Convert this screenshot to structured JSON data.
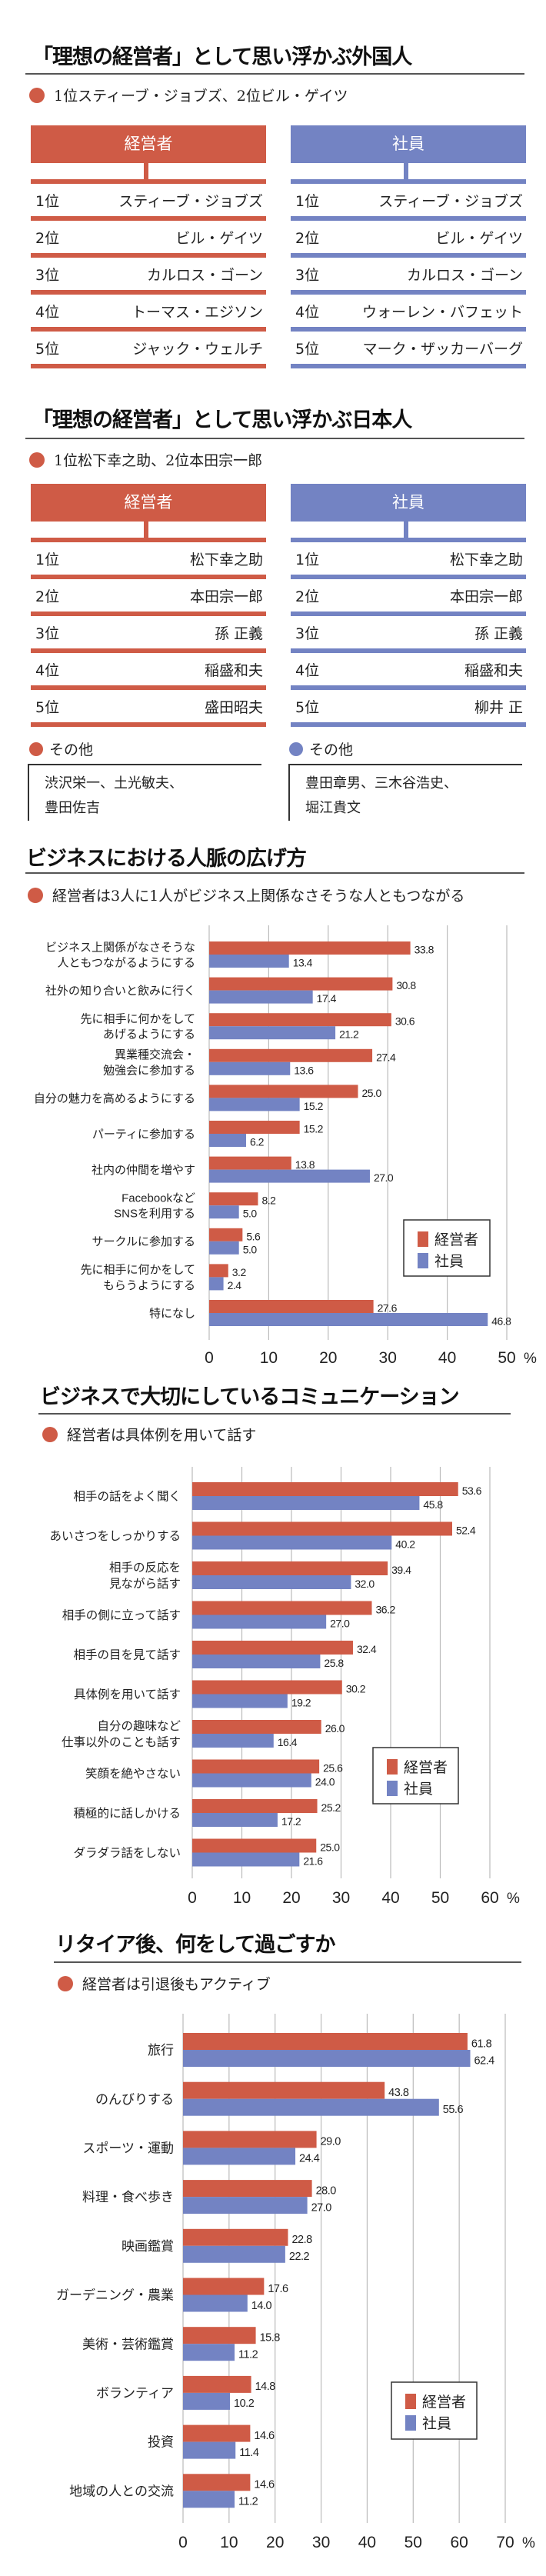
{
  "colors": {
    "executive": "#cf5b46",
    "employee": "#7383c3"
  },
  "section_foreign": {
    "title": "「理想の経営者」として思い浮かぶ外国人",
    "subtitle": "1位スティーブ・ジョブズ、2位ビル・ゲイツ",
    "executive": {
      "header": "経営者",
      "rows": [
        {
          "rank": "1位",
          "name": "スティーブ・ジョブズ"
        },
        {
          "rank": "2位",
          "name": "ビル・ゲイツ"
        },
        {
          "rank": "3位",
          "name": "カルロス・ゴーン"
        },
        {
          "rank": "4位",
          "name": "トーマス・エジソン"
        },
        {
          "rank": "5位",
          "name": "ジャック・ウェルチ"
        }
      ]
    },
    "employee": {
      "header": "社員",
      "rows": [
        {
          "rank": "1位",
          "name": "スティーブ・ジョブズ"
        },
        {
          "rank": "2位",
          "name": "ビル・ゲイツ"
        },
        {
          "rank": "3位",
          "name": "カルロス・ゴーン"
        },
        {
          "rank": "4位",
          "name": "ウォーレン・バフェット"
        },
        {
          "rank": "5位",
          "name": "マーク・ザッカーバーグ"
        }
      ]
    }
  },
  "section_japanese": {
    "title": "「理想の経営者」として思い浮かぶ日本人",
    "subtitle": "1位松下幸之助、2位本田宗一郎",
    "executive": {
      "header": "経営者",
      "rows": [
        {
          "rank": "1位",
          "name": "松下幸之助"
        },
        {
          "rank": "2位",
          "name": "本田宗一郎"
        },
        {
          "rank": "3位",
          "name": "孫 正義"
        },
        {
          "rank": "4位",
          "name": "稲盛和夫"
        },
        {
          "rank": "5位",
          "name": "盛田昭夫"
        }
      ],
      "other_label": "その他",
      "other_line1": "渋沢栄一、土光敏夫、",
      "other_line2": "豊田佐吉"
    },
    "employee": {
      "header": "社員",
      "rows": [
        {
          "rank": "1位",
          "name": "松下幸之助"
        },
        {
          "rank": "2位",
          "name": "本田宗一郎"
        },
        {
          "rank": "3位",
          "name": "孫 正義"
        },
        {
          "rank": "4位",
          "name": "稲盛和夫"
        },
        {
          "rank": "5位",
          "name": "柳井 正"
        }
      ],
      "other_label": "その他",
      "other_line1": "豊田章男、三木谷浩史、",
      "other_line2": "堀江貴文"
    }
  },
  "chart_sections": [
    {
      "title": "ビジネスにおける人脈の広げ方",
      "subtitle": "経営者は3人に1人がビジネス上関係なさそうな人ともつながる"
    },
    {
      "title": "ビジネスで大切にしているコミュニケーション",
      "subtitle": "経営者は具体例を用いて話す"
    },
    {
      "title": "リタイア後、何をして過ごすか",
      "subtitle": "経営者は引退後もアクティブ"
    }
  ],
  "chart_data": [
    {
      "type": "bar",
      "orientation": "horizontal",
      "xlim": [
        0,
        50
      ],
      "xticks": [
        0,
        10,
        20,
        30,
        40,
        50
      ],
      "unit": "%",
      "grid": true,
      "legend": "right",
      "categories": [
        "ビジネス上関係がなさそうな\n人ともつながるようにする",
        "社外の知り合いと飲みに行く",
        "先に相手に何かをして\nあげるようにする",
        "異業種交流会・\n勉強会に参加する",
        "自分の魅力を高めるようにする",
        "パーティに参加する",
        "社内の仲間を増やす",
        "Facebookなど\nSNSを利用する",
        "サークルに参加する",
        "先に相手に何かをして\nもらうようにする",
        "特になし"
      ],
      "series": [
        {
          "name": "経営者",
          "values": [
            33.8,
            30.8,
            30.6,
            27.4,
            25.0,
            15.2,
            13.8,
            8.2,
            5.6,
            3.2,
            27.6
          ]
        },
        {
          "name": "社員",
          "values": [
            13.4,
            17.4,
            21.2,
            13.6,
            15.2,
            6.2,
            27.0,
            5.0,
            5.0,
            2.4,
            46.8
          ]
        }
      ]
    },
    {
      "type": "bar",
      "orientation": "horizontal",
      "xlim": [
        0,
        60
      ],
      "xticks": [
        0,
        10,
        20,
        30,
        40,
        50,
        60
      ],
      "unit": "%",
      "grid": true,
      "legend": "right",
      "categories": [
        "相手の話をよく聞く",
        "あいさつをしっかりする",
        "相手の反応を\n見ながら話す",
        "相手の側に立って話す",
        "相手の目を見て話す",
        "具体例を用いて話す",
        "自分の趣味など\n仕事以外のことも話す",
        "笑顔を絶やさない",
        "積極的に話しかける",
        "ダラダラ話をしない"
      ],
      "series": [
        {
          "name": "経営者",
          "values": [
            53.6,
            52.4,
            39.4,
            36.2,
            32.4,
            30.2,
            26.0,
            25.6,
            25.2,
            25.0
          ]
        },
        {
          "name": "社員",
          "values": [
            45.8,
            40.2,
            32.0,
            27.0,
            25.8,
            19.2,
            16.4,
            24.0,
            17.2,
            21.6
          ]
        }
      ]
    },
    {
      "type": "bar",
      "orientation": "horizontal",
      "xlim": [
        0,
        70
      ],
      "xticks": [
        0,
        10,
        20,
        30,
        40,
        50,
        60,
        70
      ],
      "unit": "%",
      "grid": true,
      "legend": "right",
      "categories": [
        "旅行",
        "のんびりする",
        "スポーツ・運動",
        "料理・食べ歩き",
        "映画鑑賞",
        "ガーデニング・農業",
        "美術・芸術鑑賞",
        "ボランティア",
        "投資",
        "地域の人との交流"
      ],
      "series": [
        {
          "name": "経営者",
          "values": [
            61.8,
            43.8,
            29.0,
            28.0,
            22.8,
            17.6,
            15.8,
            14.8,
            14.6,
            14.6
          ]
        },
        {
          "name": "社員",
          "values": [
            62.4,
            55.6,
            24.4,
            27.0,
            22.2,
            14.0,
            11.2,
            10.2,
            11.4,
            11.2
          ]
        }
      ]
    }
  ]
}
